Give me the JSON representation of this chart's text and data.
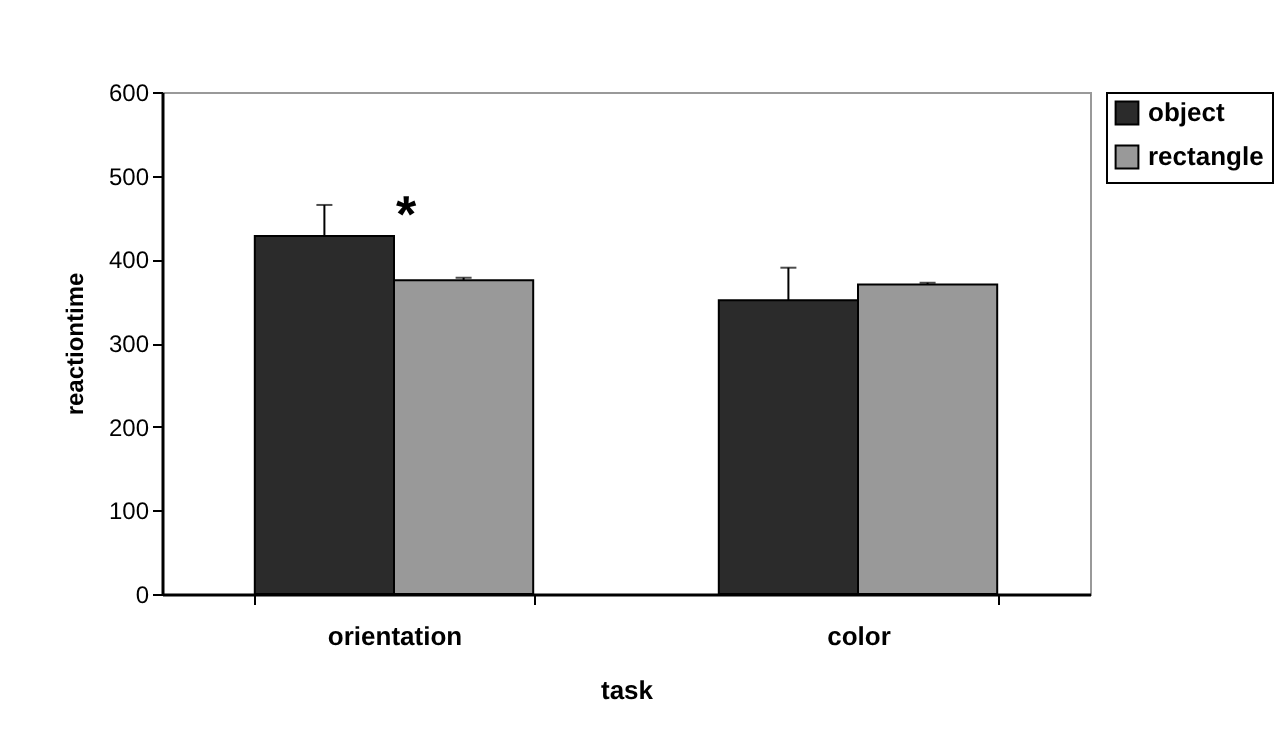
{
  "chart_data": {
    "type": "bar",
    "xlabel": "task",
    "ylabel": "reactiontime",
    "categories": [
      "orientation",
      "color"
    ],
    "series": [
      {
        "name": "object",
        "color": "#2b2b2b",
        "values": [
          428,
          351
        ],
        "errors": [
          [
            428,
            465
          ],
          [
            351,
            390
          ]
        ]
      },
      {
        "name": "rectangle",
        "color": "#999999",
        "values": [
          375,
          370
        ],
        "errors": [
          [
            375,
            378
          ],
          [
            370,
            372
          ]
        ]
      }
    ],
    "ylim": [
      0,
      600
    ],
    "yticks": [
      0,
      100,
      200,
      300,
      400,
      500,
      600
    ],
    "grid": false,
    "legend": "right",
    "annotations": [
      "*"
    ]
  }
}
